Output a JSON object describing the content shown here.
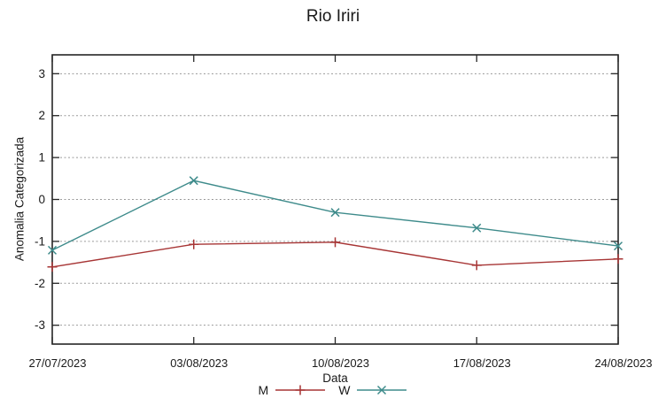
{
  "chart_data": {
    "type": "line",
    "title": "Rio Iriri",
    "xlabel": "Data",
    "ylabel": "Anomalia Categorizada",
    "categories": [
      "27/07/2023",
      "03/08/2023",
      "10/08/2023",
      "17/08/2023",
      "24/08/2023"
    ],
    "series": [
      {
        "name": "M",
        "color": "#a73535",
        "marker": "plus-marker",
        "values": [
          -1.61,
          -1.07,
          -1.02,
          -1.57,
          -1.42
        ]
      },
      {
        "name": "W",
        "color": "#3e8b8b",
        "marker": "cross-marker",
        "values": [
          -1.21,
          0.45,
          -0.31,
          -0.68,
          -1.11
        ]
      }
    ],
    "ylim": [
      -3.45,
      3.45
    ],
    "yticks": [
      -3,
      -2,
      -1,
      0,
      1,
      2,
      3
    ],
    "grid": "horizontal-dashed",
    "legend_position": "bottom-center",
    "colors": {
      "axis": "#262626",
      "grid": "#9a9a9a",
      "text": "#1a1a1a",
      "background": "#ffffff"
    }
  }
}
